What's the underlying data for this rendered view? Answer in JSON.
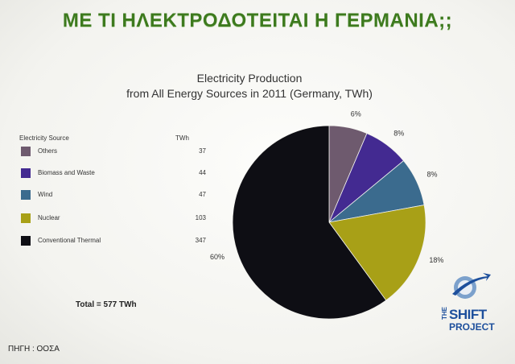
{
  "slide": {
    "title": "ΜΕ ΤΙ ΗΛΕΚΤΡΟΔΟΤΕΙΤΑΙ Η ΓΕΡΜΑΝΙΑ;;",
    "source": "ΠΗΓΗ : ΟΟΣΑ"
  },
  "logo": {
    "the": "THE",
    "shift": "SHIFT",
    "project": "PROJECT"
  },
  "chart_data": {
    "type": "pie",
    "title_line1": "Electricity Production",
    "title_line2": "from All Energy Sources in 2011 (Germany, TWh)",
    "legend_header": "Electricity Source",
    "unit_header": "TWh",
    "total_label": "Total = 577 TWh",
    "start_angle_deg": 0,
    "slices": [
      {
        "name": "Others",
        "value": 37,
        "percent_label": "6%",
        "color": "#6e5a6e"
      },
      {
        "name": "Biomass and Waste",
        "value": 44,
        "percent_label": "8%",
        "color": "#432a91"
      },
      {
        "name": "Wind",
        "value": 47,
        "percent_label": "8%",
        "color": "#3b6b8e"
      },
      {
        "name": "Nuclear",
        "value": 103,
        "percent_label": "18%",
        "color": "#a8a017"
      },
      {
        "name": "Conventional Thermal",
        "value": 347,
        "percent_label": "60%",
        "color": "#0e0e14"
      }
    ]
  }
}
